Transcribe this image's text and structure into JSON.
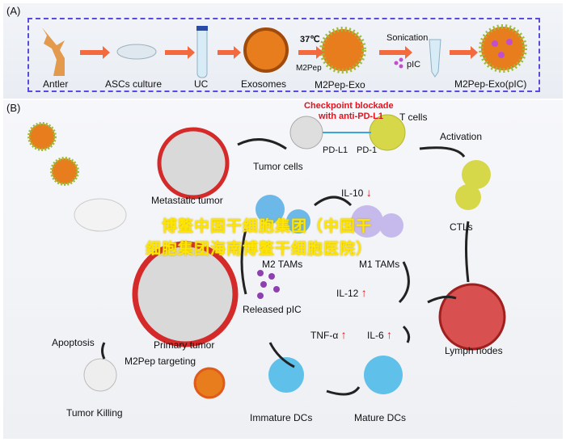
{
  "panel_a": {
    "tag": "(A)",
    "steps": [
      "Antler",
      "ASCs culture",
      "UC",
      "Exosomes",
      "M2Pep-Exo",
      "M2Pep-Exo(pIC)"
    ],
    "temp": "37℃",
    "m2pep": "M2Pep",
    "sonication": "Sonication",
    "pic": "pIC"
  },
  "panel_b": {
    "tag": "(B)",
    "checkpoint": "Checkpoint blockade",
    "checkpoint2": "with anti-PD-L1",
    "t_cells": "T cells",
    "pdl1": "PD-L1",
    "pd1": "PD-1",
    "tumor_cells": "Tumor cells",
    "metastatic": "Metastatic tumor",
    "activation": "Activation",
    "il10": "IL-10",
    "ctls": "CTLs",
    "m2tams": "M2 TAMs",
    "m1tams": "M1 TAMs",
    "il12": "IL-12",
    "released": "Released pIC",
    "primary": "Primary tumor",
    "tnf": "TNF-α",
    "il6": "IL-6",
    "lymph": "Lymph nodes",
    "apoptosis": "Apoptosis",
    "targeting": "M2Pep targeting",
    "killing": "Tumor Killing",
    "immature": "Immature DCs",
    "mature": "Mature DCs",
    "down": "↓",
    "up": "↑"
  },
  "watermark": {
    "line1": "博鳌中国干细胞集团（中国干",
    "line2": "细胞集团海南博鳌干细胞医院）"
  },
  "colors": {
    "border": "#5a4be0",
    "arrow": "#f26a3d",
    "red": "#e0141e",
    "tumor": "#d42a2a",
    "yellow": "#ffe600"
  }
}
